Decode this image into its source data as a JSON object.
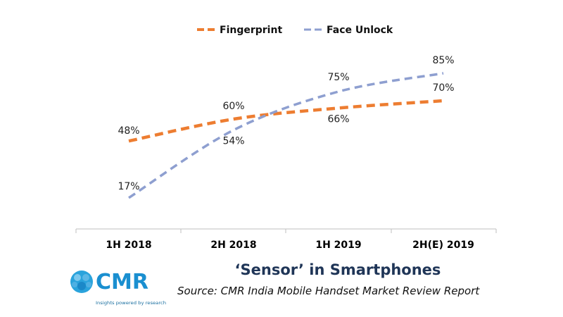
{
  "chart_data": {
    "type": "line",
    "categories": [
      "1H 2018",
      "2H 2018",
      "1H 2019",
      "2H(E) 2019"
    ],
    "series": [
      {
        "name": "Fingerprint",
        "values": [
          48,
          60,
          66,
          70
        ],
        "labels": [
          "48%",
          "60%",
          "66%",
          "70%"
        ],
        "color": "#ed7d31",
        "style": "dashed"
      },
      {
        "name": "Face Unlock",
        "values": [
          17,
          54,
          75,
          85
        ],
        "labels": [
          "17%",
          "54%",
          "75%",
          "85%"
        ],
        "color": "#8e9fd0",
        "style": "dashed"
      }
    ],
    "legend_position": "top",
    "grid": false,
    "y_axis_visible": false,
    "title": "‘Sensor’ in Smartphones",
    "source": "Source:  CMR India Mobile Handset Market Review Report"
  },
  "logo": {
    "text": "CMR",
    "tagline": "Insights powered by research",
    "color": "#1a8fd0"
  }
}
